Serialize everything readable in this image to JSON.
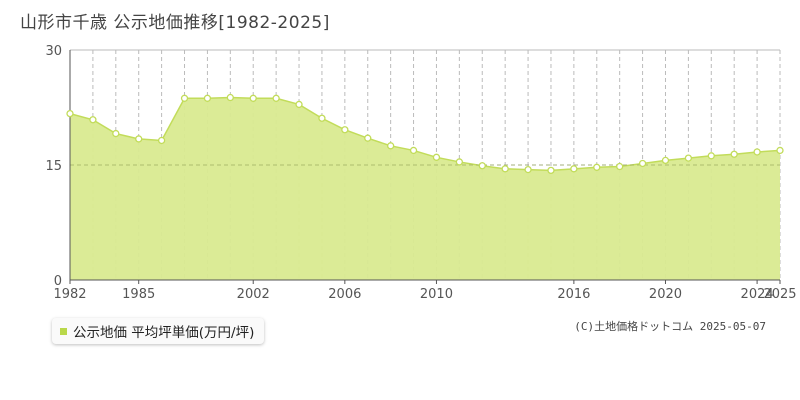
{
  "title": "山形市千歳 公示地価推移[1982-2025]",
  "legend_label": "公示地価 平均坪単価(万円/坪)",
  "copyright": "(C)土地価格ドットコム 2025-05-07",
  "colors": {
    "fill": "#d9ea90",
    "line": "#c2dc5a",
    "marker_fill": "#ffffff",
    "grid": "#bbbbbb",
    "axis": "#555555",
    "legend_swatch": "#b9d84a"
  },
  "chart_data": {
    "type": "area",
    "title": "",
    "xlabel": "",
    "ylabel": "",
    "ylim": [
      0,
      30
    ],
    "yticks": [
      0,
      15,
      30
    ],
    "xlim": [
      1982,
      2025
    ],
    "xtick_labels": [
      1982,
      1985,
      2002,
      2006,
      2010,
      2016,
      2020,
      2024,
      2025
    ],
    "grid": "vertical dashed per year, horizontal dashed at 15",
    "x_categories": [
      1982,
      1983,
      1984,
      1985,
      1986,
      1999,
      2000,
      2001,
      2002,
      2003,
      2004,
      2005,
      2006,
      2007,
      2008,
      2009,
      2010,
      2011,
      2012,
      2013,
      2014,
      2015,
      2016,
      2017,
      2018,
      2019,
      2020,
      2021,
      2022,
      2023,
      2024,
      2025
    ],
    "series": [
      {
        "name": "公示地価 平均坪単価(万円/坪)",
        "x": [
          1982,
          1983,
          1984,
          1985,
          1986,
          1999,
          2000,
          2001,
          2002,
          2003,
          2004,
          2005,
          2006,
          2007,
          2008,
          2009,
          2010,
          2011,
          2012,
          2013,
          2014,
          2015,
          2016,
          2017,
          2018,
          2019,
          2020,
          2021,
          2022,
          2023,
          2024,
          2025
        ],
        "values": [
          21.7,
          20.9,
          19.1,
          18.4,
          18.2,
          23.7,
          23.7,
          23.8,
          23.7,
          23.7,
          22.9,
          21.1,
          19.6,
          18.5,
          17.5,
          16.9,
          16.0,
          15.4,
          14.9,
          14.5,
          14.4,
          14.3,
          14.5,
          14.7,
          14.8,
          15.2,
          15.6,
          15.9,
          16.2,
          16.4,
          16.7,
          16.9
        ]
      }
    ]
  }
}
